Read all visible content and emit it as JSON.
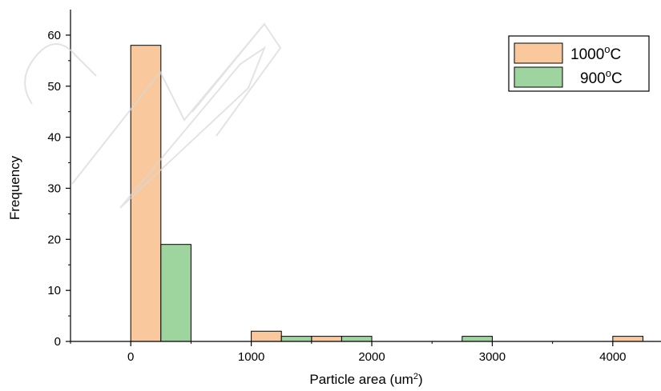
{
  "chart_data": {
    "type": "bar",
    "title": "",
    "xlabel": "Particle area (um",
    "xlabel_sup": "2",
    "xlabel_suffix": ")",
    "ylabel": "Frequency",
    "xlim": [
      -500,
      4400
    ],
    "ylim": [
      0,
      65
    ],
    "xticks": [
      0,
      1000,
      2000,
      3000,
      4000
    ],
    "yticks": [
      0,
      10,
      20,
      30,
      40,
      50,
      60
    ],
    "bin_width": 250,
    "legend_position": "top-right",
    "grid": false,
    "series": [
      {
        "name": "1000",
        "name_sup": "o",
        "name_suffix": "C",
        "color": "#F9C89C",
        "bins": [
          {
            "x0": 0,
            "x1": 250,
            "value": 58
          },
          {
            "x0": 1000,
            "x1": 1250,
            "value": 2
          },
          {
            "x0": 1500,
            "x1": 1750,
            "value": 1
          },
          {
            "x0": 4000,
            "x1": 4250,
            "value": 1
          }
        ]
      },
      {
        "name": "900",
        "name_sup": "o",
        "name_suffix": "C",
        "color": "#9ED59E",
        "bins": [
          {
            "x0": 250,
            "x1": 500,
            "value": 19
          },
          {
            "x0": 1250,
            "x1": 1500,
            "value": 1
          },
          {
            "x0": 1750,
            "x1": 2000,
            "value": 1
          },
          {
            "x0": 2750,
            "x1": 3000,
            "value": 1
          }
        ]
      }
    ]
  }
}
